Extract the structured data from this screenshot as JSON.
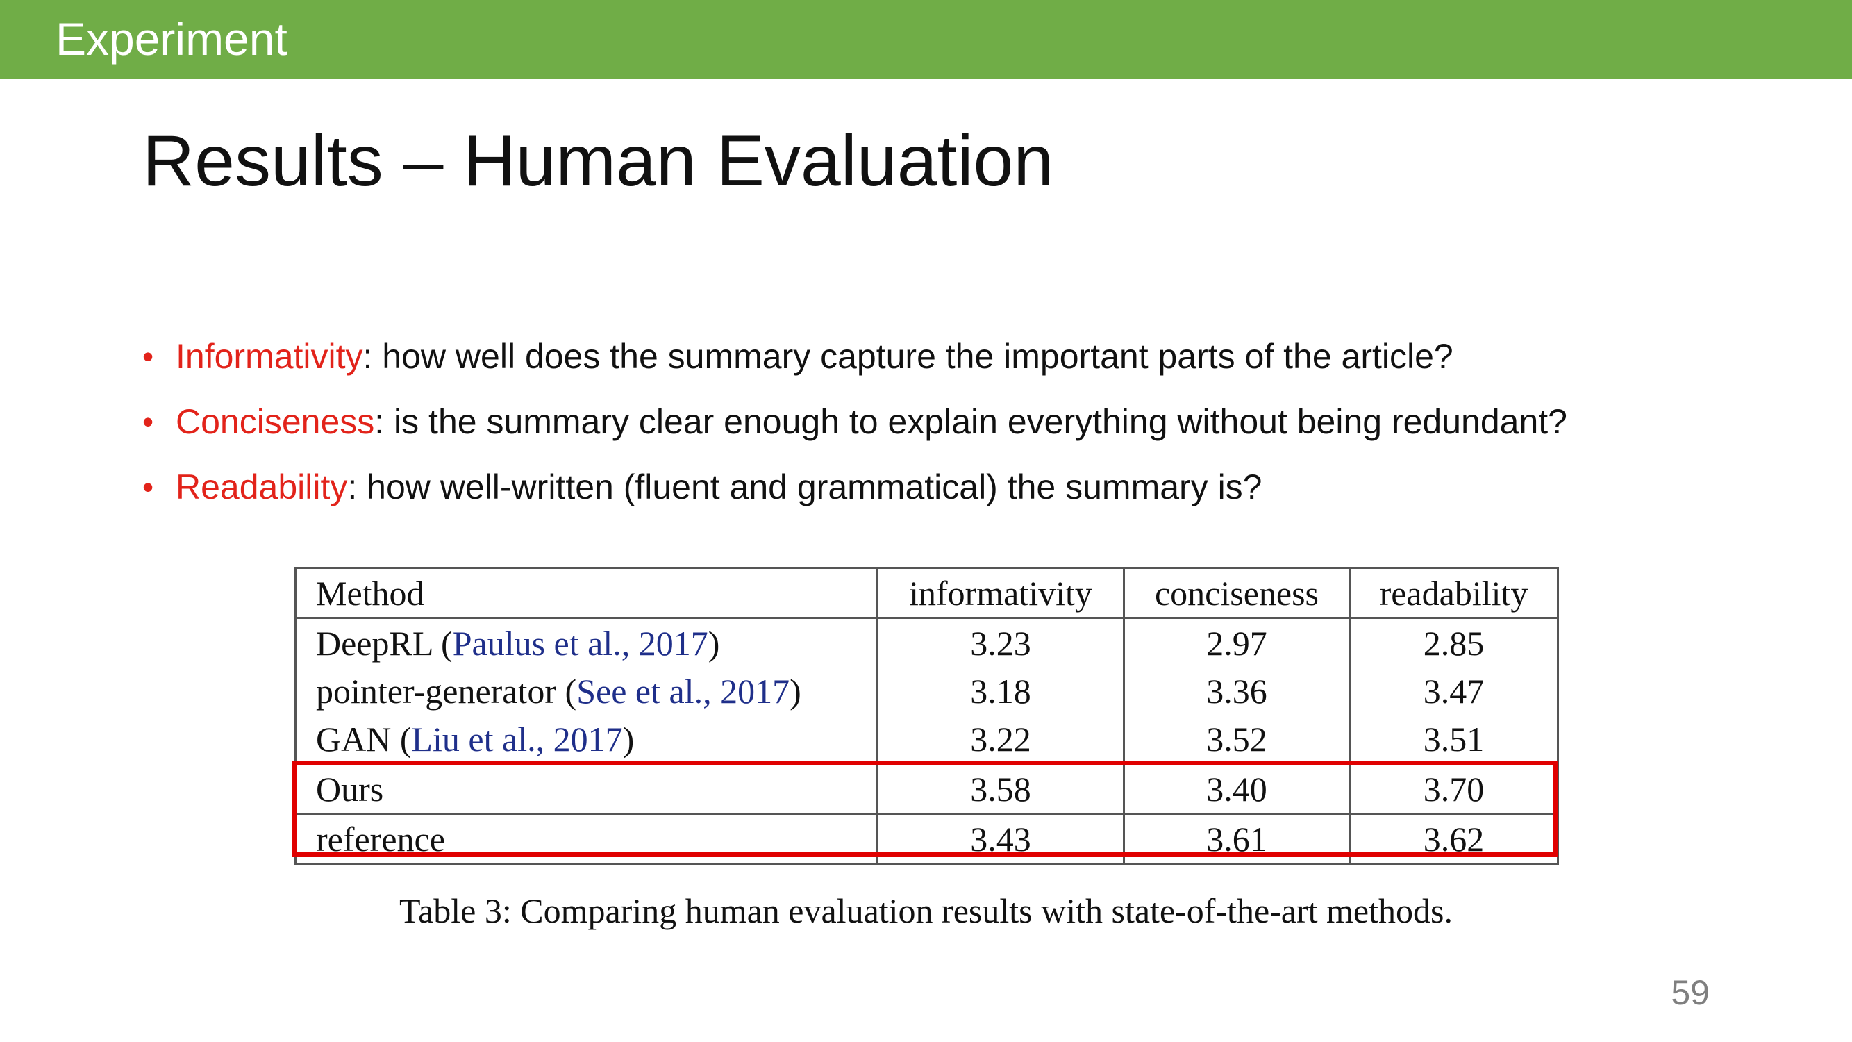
{
  "header": {
    "section_label": "Experiment"
  },
  "title": "Results – Human Evaluation",
  "bullets": [
    {
      "term": "Informativity",
      "text": ": how well does the summary capture the important parts of the article?"
    },
    {
      "term": "Conciseness",
      "text": ": is the summary clear enough to explain everything without being redundant?"
    },
    {
      "term": "Readability",
      "text": ": how well-written (fluent and grammatical) the summary is?"
    }
  ],
  "bullet_symbol": "•",
  "table": {
    "headers": [
      "Method",
      "informativity",
      "conciseness",
      "readability"
    ],
    "rows": [
      {
        "method": "DeepRL",
        "citation": "Paulus et al., 2017",
        "values": [
          "3.23",
          "2.97",
          "2.85"
        ]
      },
      {
        "method": "pointer-generator",
        "citation": "See et al., 2017",
        "values": [
          "3.18",
          "3.36",
          "3.47"
        ]
      },
      {
        "method": "GAN",
        "citation": "Liu et al., 2017",
        "values": [
          "3.22",
          "3.52",
          "3.51"
        ]
      },
      {
        "method": "Ours",
        "citation": "",
        "values": [
          "3.58",
          "3.40",
          "3.70"
        ]
      },
      {
        "method": "reference",
        "citation": "",
        "values": [
          "3.43",
          "3.61",
          "3.62"
        ]
      }
    ],
    "caption": "Table 3: Comparing human evaluation results with state-of-the-art methods."
  },
  "colors": {
    "header_bar": "#70ad47",
    "term": "#e2231a",
    "citation": "#1f2f8a",
    "highlight_box": "#e00000"
  },
  "slide_number": "59"
}
